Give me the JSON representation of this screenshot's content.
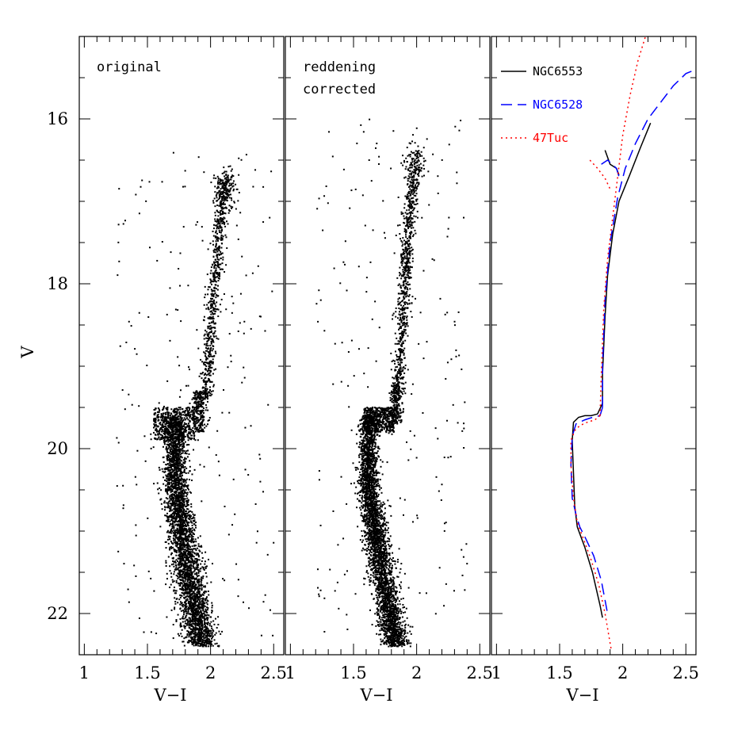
{
  "chart_data": {
    "type": "scatter",
    "y_axis_label": "V",
    "y_lim": [
      15.0,
      22.5
    ],
    "y_ticks": [
      16,
      18,
      20,
      22
    ],
    "y_inverted": true,
    "panels": [
      {
        "annotation_lines": [
          "original"
        ],
        "x_label": "V−I",
        "x_lim": [
          0.96,
          2.58
        ],
        "x_ticks": [
          "1",
          "1.5",
          "2",
          "2.5"
        ],
        "kind": "scatter",
        "point_color": "#000000",
        "features": [
          {
            "part": "main-sequence",
            "x_center": [
              1.72,
              1.72,
              1.8,
              1.93
            ],
            "v": [
              19.6,
              20.5,
              21.3,
              22.4
            ],
            "spread": 0.055
          },
          {
            "part": "turnoff-bridge",
            "x": [
              1.55,
              1.88
            ],
            "v": [
              19.5,
              19.9
            ]
          },
          {
            "part": "subgiant-branch",
            "x": [
              1.88,
              1.95
            ],
            "v": [
              19.3,
              19.8
            ]
          },
          {
            "part": "red-giant-branch",
            "x": [
              1.96,
              2.0,
              2.06,
              2.12
            ],
            "v": [
              19.4,
              18.5,
              17.5,
              16.7
            ]
          },
          {
            "part": "red-clump",
            "x_center": 2.12,
            "v_center": 16.85
          },
          {
            "part": "field-stars",
            "x": [
              1.25,
              2.5
            ],
            "v": [
              16.4,
              22.3
            ]
          }
        ]
      },
      {
        "annotation_lines": [
          "reddening",
          "corrected"
        ],
        "x_label": "V−I",
        "x_lim": [
          0.96,
          2.58
        ],
        "x_ticks": [
          "1",
          "1.5",
          "2",
          "2.5"
        ],
        "kind": "scatter",
        "point_color": "#000000",
        "features": [
          {
            "part": "main-sequence",
            "x_center": [
              1.62,
              1.62,
              1.7,
              1.84
            ],
            "v": [
              19.6,
              20.5,
              21.3,
              22.4
            ],
            "spread": 0.045
          },
          {
            "part": "turnoff-bridge",
            "x": [
              1.58,
              1.82
            ],
            "v": [
              19.5,
              19.8
            ]
          },
          {
            "part": "subgiant-branch",
            "x": [
              1.82,
              1.86
            ],
            "v": [
              19.2,
              19.7
            ]
          },
          {
            "part": "red-giant-branch",
            "x": [
              1.86,
              1.9,
              1.94,
              1.98
            ],
            "v": [
              19.2,
              18.2,
              17.2,
              16.7
            ]
          },
          {
            "part": "red-clump",
            "x_center": 1.98,
            "v_center": 16.55
          },
          {
            "part": "field-stars",
            "x": [
              1.2,
              2.4
            ],
            "v": [
              16.0,
              22.3
            ]
          }
        ]
      },
      {
        "annotation_lines": [],
        "x_label": "V−I",
        "x_lim": [
          0.96,
          2.58
        ],
        "x_ticks": [
          "1",
          "1.5",
          "2",
          "2.5"
        ],
        "kind": "line",
        "legend": [
          {
            "label": "NGC6553",
            "color": "#000000",
            "dash": "solid"
          },
          {
            "label": "NGC6528",
            "color": "#0000ff",
            "dash": "dashed"
          },
          {
            "label": "47Tuc",
            "color": "#ff0000",
            "dash": "dotted"
          }
        ],
        "series": [
          {
            "name": "NGC6553",
            "color": "#000000",
            "dash": "solid",
            "segments": [
              {
                "x": [
                  1.84,
                  1.8,
                  1.75,
                  1.7,
                  1.65,
                  1.61,
                  1.6,
                  1.61,
                  1.62,
                  1.64,
                  1.7,
                  1.76,
                  1.82,
                  1.84
                ],
                "y": [
                  19.45,
                  19.58,
                  19.6,
                  19.6,
                  19.62,
                  19.68,
                  19.9,
                  20.3,
                  20.7,
                  20.95,
                  21.2,
                  21.5,
                  21.9,
                  22.05
                ]
              },
              {
                "x": [
                  1.84,
                  1.84,
                  1.86,
                  1.88,
                  1.92,
                  1.97,
                  2.05,
                  2.14,
                  2.22
                ],
                "y": [
                  19.45,
                  19.1,
                  18.4,
                  17.9,
                  17.4,
                  17.0,
                  16.7,
                  16.35,
                  16.05
                ]
              },
              {
                "x": [
                  1.86,
                  1.9,
                  1.95,
                  1.97
                ],
                "y": [
                  16.38,
                  16.55,
                  16.6,
                  16.68
                ]
              }
            ]
          },
          {
            "name": "NGC6528",
            "color": "#0000ff",
            "dash": "dashed",
            "segments": [
              {
                "x": [
                  1.84,
                  1.82,
                  1.76,
                  1.7,
                  1.63,
                  1.6,
                  1.59,
                  1.6,
                  1.63,
                  1.66,
                  1.71,
                  1.77,
                  1.83,
                  1.88
                ],
                "y": [
                  19.5,
                  19.6,
                  19.62,
                  19.65,
                  19.7,
                  19.85,
                  20.2,
                  20.6,
                  20.8,
                  20.95,
                  21.1,
                  21.3,
                  21.6,
                  22.0
                ]
              },
              {
                "x": [
                  1.84,
                  1.84,
                  1.86,
                  1.9,
                  1.96,
                  2.02,
                  2.1,
                  2.2,
                  2.3,
                  2.4,
                  2.5,
                  2.58
                ],
                "y": [
                  19.5,
                  19.0,
                  18.2,
                  17.5,
                  16.95,
                  16.6,
                  16.3,
                  16.0,
                  15.8,
                  15.6,
                  15.45,
                  15.4
                ]
              },
              {
                "x": [
                  1.83,
                  1.88,
                  1.95,
                  1.97
                ],
                "y": [
                  16.55,
                  16.5,
                  16.6,
                  16.7
                ]
              }
            ]
          },
          {
            "name": "47Tuc",
            "color": "#ff0000",
            "dash": "dotted",
            "segments": [
              {
                "x": [
                  1.82,
                  1.78,
                  1.72,
                  1.66,
                  1.62,
                  1.59,
                  1.59,
                  1.61,
                  1.64,
                  1.69,
                  1.75,
                  1.81,
                  1.86,
                  1.91
                ],
                "y": [
                  19.6,
                  19.65,
                  19.68,
                  19.72,
                  19.78,
                  19.9,
                  20.2,
                  20.6,
                  20.9,
                  21.1,
                  21.35,
                  21.65,
                  22.0,
                  22.45
                ]
              },
              {
                "x": [
                  1.82,
                  1.83,
                  1.85,
                  1.88,
                  1.92,
                  1.96,
                  2.0,
                  2.06,
                  2.12,
                  2.18
                ],
                "y": [
                  19.6,
                  19.1,
                  18.3,
                  17.7,
                  17.2,
                  16.7,
                  16.2,
                  15.7,
                  15.3,
                  15.0
                ]
              },
              {
                "x": [
                  1.74,
                  1.8,
                  1.86,
                  1.9
                ],
                "y": [
                  16.5,
                  16.6,
                  16.72,
                  16.85
                ]
              }
            ]
          }
        ]
      }
    ]
  }
}
